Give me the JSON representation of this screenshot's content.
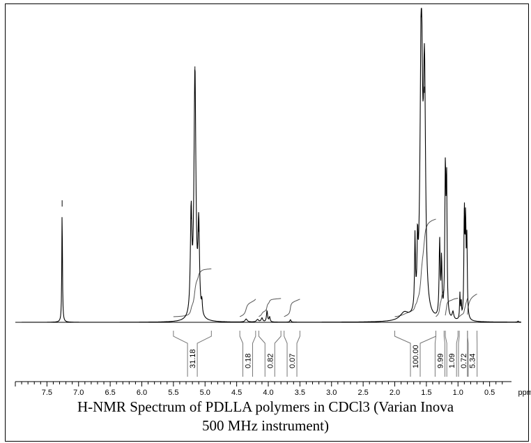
{
  "caption": {
    "line1": "H-NMR Spectrum of PDLLA polymers in CDCl3 (Varian Inova",
    "line2": "500 MHz instrument)"
  },
  "chart_data": {
    "type": "line",
    "title": "H-NMR Spectrum of PDLLA polymers in CDCl3 (Varian Inova 500 MHz instrument)",
    "xlabel": "ppm",
    "ylabel": "",
    "x_reversed": true,
    "xlim": [
      8.0,
      0.0
    ],
    "x_ticks": [
      "7.5",
      "7.0",
      "6.5",
      "6.0",
      "5.5",
      "5.0",
      "4.5",
      "4.0",
      "3.5",
      "3.0",
      "2.5",
      "2.0",
      "1.5",
      "1.0",
      "0.5"
    ],
    "x_tick_values": [
      7.5,
      7.0,
      6.5,
      6.0,
      5.5,
      5.0,
      4.5,
      4.0,
      3.5,
      3.0,
      2.5,
      2.0,
      1.5,
      1.0,
      0.5
    ],
    "peaks": [
      {
        "shift": 7.26,
        "height": 0.45,
        "width": 0.006
      },
      {
        "shift": 5.22,
        "height": 0.4,
        "width": 0.014
      },
      {
        "shift": 5.16,
        "height": 0.98,
        "width": 0.018
      },
      {
        "shift": 5.1,
        "height": 0.35,
        "width": 0.014
      },
      {
        "shift": 5.05,
        "height": 0.05,
        "width": 0.008
      },
      {
        "shift": 4.35,
        "height": 0.012,
        "width": 0.02
      },
      {
        "shift": 4.17,
        "height": 0.01,
        "width": 0.02
      },
      {
        "shift": 4.1,
        "height": 0.016,
        "width": 0.015
      },
      {
        "shift": 4.02,
        "height": 0.045,
        "width": 0.01
      },
      {
        "shift": 3.98,
        "height": 0.02,
        "width": 0.01
      },
      {
        "shift": 3.65,
        "height": 0.01,
        "width": 0.01
      },
      {
        "shift": 1.85,
        "height": 0.03,
        "width": 0.08
      },
      {
        "shift": 1.68,
        "height": 0.28,
        "width": 0.008
      },
      {
        "shift": 1.64,
        "height": 0.22,
        "width": 0.008
      },
      {
        "shift": 1.58,
        "height": 1.2,
        "width": 0.022
      },
      {
        "shift": 1.53,
        "height": 0.9,
        "width": 0.02
      },
      {
        "shift": 1.29,
        "height": 0.3,
        "width": 0.01
      },
      {
        "shift": 1.26,
        "height": 0.22,
        "width": 0.008
      },
      {
        "shift": 1.2,
        "height": 0.58,
        "width": 0.01
      },
      {
        "shift": 1.18,
        "height": 0.5,
        "width": 0.008
      },
      {
        "shift": 1.08,
        "height": 0.03,
        "width": 0.015
      },
      {
        "shift": 0.97,
        "height": 0.1,
        "width": 0.006
      },
      {
        "shift": 0.95,
        "height": 0.07,
        "width": 0.006
      },
      {
        "shift": 0.9,
        "height": 0.42,
        "width": 0.008
      },
      {
        "shift": 0.88,
        "height": 0.36,
        "width": 0.008
      },
      {
        "shift": 0.86,
        "height": 0.3,
        "width": 0.008
      },
      {
        "shift": 0.05,
        "height": 0.004,
        "width": 0.01
      }
    ],
    "integrals": [
      {
        "value": "31.18",
        "from": 5.5,
        "to": 4.9
      },
      {
        "value": "0.18",
        "from": 4.45,
        "to": 4.2
      },
      {
        "value": "0.82",
        "from": 4.15,
        "to": 3.8
      },
      {
        "value": "0.07",
        "from": 3.75,
        "to": 3.5
      },
      {
        "value": "100.00",
        "from": 2.0,
        "to": 1.35
      },
      {
        "value": "9.99",
        "from": 1.35,
        "to": 1.22
      },
      {
        "value": "1.09",
        "from": 1.2,
        "to": 1.0
      },
      {
        "value": "0.72",
        "from": 0.98,
        "to": 0.85
      },
      {
        "value": "5.34",
        "from": 0.85,
        "to": 0.7
      }
    ]
  }
}
